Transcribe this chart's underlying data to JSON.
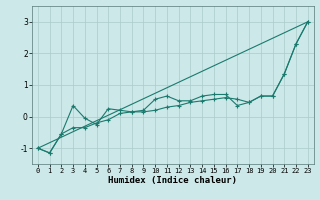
{
  "xlabel": "Humidex (Indice chaleur)",
  "bg_color": "#cce8e8",
  "grid_color": "#aacccc",
  "line_color": "#1a7a6e",
  "xlim": [
    -0.5,
    23.5
  ],
  "ylim": [
    -1.5,
    3.5
  ],
  "yticks": [
    -1,
    0,
    1,
    2,
    3
  ],
  "xticks": [
    0,
    1,
    2,
    3,
    4,
    5,
    6,
    7,
    8,
    9,
    10,
    11,
    12,
    13,
    14,
    15,
    16,
    17,
    18,
    19,
    20,
    21,
    22,
    23
  ],
  "line1_x": [
    0,
    1,
    2,
    3,
    4,
    5,
    6,
    7,
    8,
    9,
    10,
    11,
    12,
    13,
    14,
    15,
    16,
    17,
    18,
    19,
    20,
    21,
    22,
    23
  ],
  "line1_y": [
    -1.0,
    -1.15,
    -0.55,
    -0.35,
    -0.35,
    -0.2,
    -0.1,
    0.1,
    0.15,
    0.15,
    0.2,
    0.3,
    0.35,
    0.45,
    0.5,
    0.55,
    0.6,
    0.55,
    0.45,
    0.65,
    0.65,
    1.35,
    2.3,
    3.0
  ],
  "line2_x": [
    0,
    1,
    2,
    3,
    4,
    5,
    6,
    7,
    8,
    9,
    10,
    11,
    12,
    13,
    14,
    15,
    16,
    17,
    18,
    19,
    20,
    21,
    22,
    23
  ],
  "line2_y": [
    -1.0,
    -1.15,
    -0.55,
    0.35,
    -0.05,
    -0.25,
    0.25,
    0.2,
    0.15,
    0.2,
    0.55,
    0.65,
    0.5,
    0.5,
    0.65,
    0.7,
    0.7,
    0.35,
    0.45,
    0.65,
    0.65,
    1.35,
    2.3,
    3.0
  ],
  "line3_x": [
    0,
    23
  ],
  "line3_y": [
    -1.0,
    3.0
  ],
  "marker": "+"
}
